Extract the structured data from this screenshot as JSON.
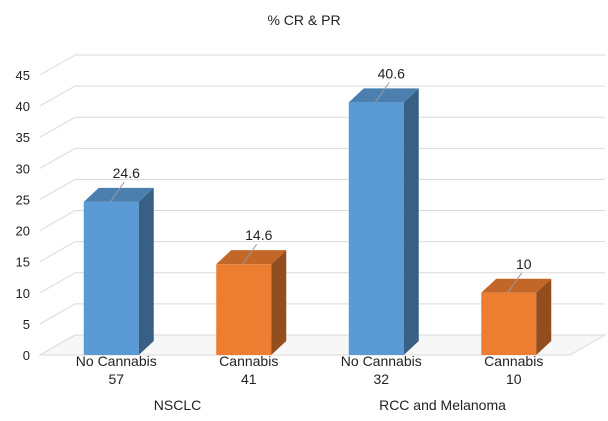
{
  "chart_data": {
    "type": "bar",
    "title": "% CR & PR",
    "categories": [
      {
        "label": "No Cannabis",
        "n": "57",
        "group": "NSCLC"
      },
      {
        "label": "Cannabis",
        "n": "41",
        "group": "NSCLC"
      },
      {
        "label": "No Cannabis",
        "n": "32",
        "group": "RCC and Melanoma"
      },
      {
        "label": "Cannabis",
        "n": "10",
        "group": "RCC and Melanoma"
      }
    ],
    "values": [
      24.6,
      14.6,
      40.6,
      10
    ],
    "value_labels": [
      "24.6",
      "14.6",
      "40.6",
      "10"
    ],
    "groups": [
      "NSCLC",
      "RCC and Melanoma"
    ],
    "y_ticks": [
      "0",
      "5",
      "10",
      "15",
      "20",
      "25",
      "30",
      "35",
      "40",
      "45"
    ],
    "ylim": [
      0,
      45
    ],
    "grid": true,
    "colors": {
      "no_cannabis": "#5b9bd5",
      "cannabis": "#ed7d31"
    }
  }
}
